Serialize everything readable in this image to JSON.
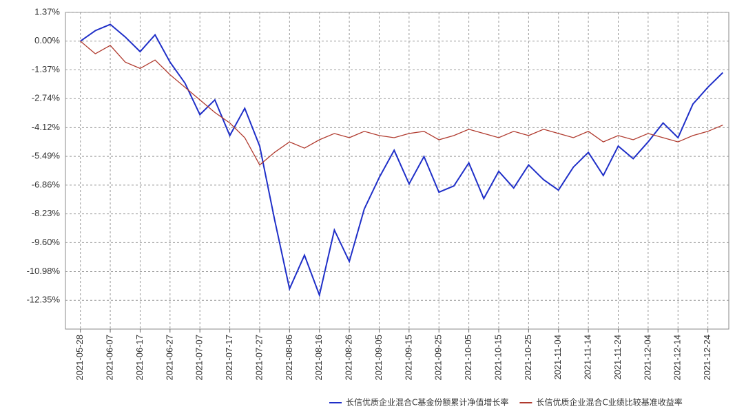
{
  "chart_data": {
    "type": "line",
    "x": [
      "2021-05-28",
      "2021-06-02",
      "2021-06-07",
      "2021-06-12",
      "2021-06-17",
      "2021-06-22",
      "2021-06-27",
      "2021-07-02",
      "2021-07-07",
      "2021-07-12",
      "2021-07-17",
      "2021-07-22",
      "2021-07-27",
      "2021-08-01",
      "2021-08-06",
      "2021-08-11",
      "2021-08-16",
      "2021-08-21",
      "2021-08-26",
      "2021-08-31",
      "2021-09-05",
      "2021-09-10",
      "2021-09-15",
      "2021-09-20",
      "2021-09-25",
      "2021-09-30",
      "2021-10-05",
      "2021-10-10",
      "2021-10-15",
      "2021-10-20",
      "2021-10-25",
      "2021-10-30",
      "2021-11-04",
      "2021-11-09",
      "2021-11-14",
      "2021-11-19",
      "2021-11-24",
      "2021-11-29",
      "2021-12-04",
      "2021-12-09",
      "2021-12-14",
      "2021-12-19",
      "2021-12-24",
      "2021-12-29"
    ],
    "series": [
      {
        "name": "长信优质企业混合C基金份额累计净值增长率",
        "color": "#1f2fc8",
        "values": [
          0,
          0.5,
          0.8,
          0.2,
          -0.5,
          0.3,
          -1.0,
          -2.0,
          -3.5,
          -2.8,
          -4.5,
          -3.2,
          -5.0,
          -8.5,
          -11.8,
          -10.2,
          -12.1,
          -9.0,
          -10.5,
          -8.0,
          -6.5,
          -5.2,
          -6.8,
          -5.5,
          -7.2,
          -6.9,
          -5.8,
          -7.5,
          -6.2,
          -7.0,
          -5.9,
          -6.6,
          -7.1,
          -6.0,
          -5.3,
          -6.4,
          -5.0,
          -5.6,
          -4.8,
          -3.9,
          -4.6,
          -3.0,
          -2.2,
          -1.5
        ]
      },
      {
        "name": "长信优质企业混合C业绩比较基准收益率",
        "color": "#b03a2e",
        "values": [
          0,
          -0.6,
          -0.2,
          -1.0,
          -1.3,
          -0.9,
          -1.6,
          -2.2,
          -2.8,
          -3.4,
          -3.9,
          -4.6,
          -5.9,
          -5.3,
          -4.8,
          -5.1,
          -4.7,
          -4.4,
          -4.6,
          -4.3,
          -4.5,
          -4.6,
          -4.4,
          -4.3,
          -4.7,
          -4.5,
          -4.2,
          -4.4,
          -4.6,
          -4.3,
          -4.5,
          -4.2,
          -4.4,
          -4.6,
          -4.3,
          -4.8,
          -4.5,
          -4.7,
          -4.4,
          -4.6,
          -4.8,
          -4.5,
          -4.3,
          -4.0
        ]
      }
    ],
    "xlim": [
      "2021-05-23",
      "2021-12-31"
    ],
    "xticks": [
      "2021-05-28",
      "2021-06-07",
      "2021-06-17",
      "2021-06-27",
      "2021-07-07",
      "2021-07-17",
      "2021-07-27",
      "2021-08-06",
      "2021-08-16",
      "2021-08-26",
      "2021-09-05",
      "2021-09-15",
      "2021-09-25",
      "2021-10-05",
      "2021-10-15",
      "2021-10-25",
      "2021-11-04",
      "2021-11-14",
      "2021-11-24",
      "2021-12-04",
      "2021-12-14",
      "2021-12-24"
    ],
    "ylim": [
      -13.72,
      1.37
    ],
    "yticks": [
      {
        "value": 1.37,
        "label": "1.37%"
      },
      {
        "value": 0,
        "label": "0.00%"
      },
      {
        "value": -1.37,
        "label": "-1.37%"
      },
      {
        "value": -2.74,
        "label": "-2.74%"
      },
      {
        "value": -4.12,
        "label": "-4.12%"
      },
      {
        "value": -5.49,
        "label": "-5.49%"
      },
      {
        "value": -6.86,
        "label": "-6.86%"
      },
      {
        "value": -8.23,
        "label": "-8.23%"
      },
      {
        "value": -9.6,
        "label": "-9.60%"
      },
      {
        "value": -10.98,
        "label": "-10.98%"
      },
      {
        "value": -12.35,
        "label": "-12.35%"
      }
    ],
    "grid": true
  }
}
